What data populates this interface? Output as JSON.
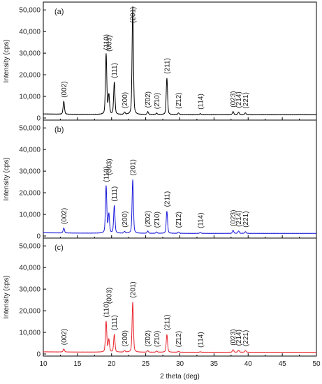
{
  "chart_data": [
    {
      "type": "line",
      "panel_label": "(a)",
      "color": "#000000",
      "xlabel": "2 theta (deg)",
      "ylabel": "Intensity (cps)",
      "xlim": [
        10,
        50
      ],
      "ylim": [
        0,
        52000
      ],
      "xticks": [
        10,
        15,
        20,
        25,
        30,
        35,
        40,
        45,
        50
      ],
      "yticks": [
        0,
        10000,
        20000,
        30000,
        40000,
        50000
      ],
      "ytick_labels": [
        "0",
        "10,000",
        "20,000",
        "30,000",
        "40,000",
        "50,000"
      ],
      "baseline": 1500,
      "peaks": [
        {
          "x": 13.0,
          "y": 7500,
          "label": "(002)"
        },
        {
          "x": 19.2,
          "y": 29500,
          "label": "(110)"
        },
        {
          "x": 19.6,
          "y": 10500,
          "label": "(003)"
        },
        {
          "x": 20.4,
          "y": 16500,
          "label": "(111)"
        },
        {
          "x": 21.9,
          "y": 2500,
          "label": "(200)"
        },
        {
          "x": 23.1,
          "y": 51500,
          "label": "(201)"
        },
        {
          "x": 25.3,
          "y": 2800,
          "label": "(2̄02)"
        },
        {
          "x": 26.6,
          "y": 2200,
          "label": "(2̄10)"
        },
        {
          "x": 28.1,
          "y": 18500,
          "label": "(211)"
        },
        {
          "x": 29.8,
          "y": 2300,
          "label": "(2̄12)"
        },
        {
          "x": 33.0,
          "y": 2000,
          "label": "(114)"
        },
        {
          "x": 37.8,
          "y": 3000,
          "label": "(023)"
        },
        {
          "x": 38.6,
          "y": 2700,
          "label": "(214)"
        },
        {
          "x": 39.6,
          "y": 2400,
          "label": "(221)"
        }
      ]
    },
    {
      "type": "line",
      "panel_label": "(b)",
      "color": "#1a1adc",
      "xlabel": "2 theta (deg)",
      "ylabel": "Intensity (cps)",
      "xlim": [
        10,
        50
      ],
      "ylim": [
        0,
        52000
      ],
      "xticks": [
        10,
        15,
        20,
        25,
        30,
        35,
        40,
        45,
        50
      ],
      "yticks": [
        0,
        10000,
        20000,
        30000,
        40000,
        50000
      ],
      "ytick_labels": [
        "0",
        "10,000",
        "20,000",
        "30,000",
        "40,000",
        "50,000"
      ],
      "baseline": 1200,
      "peaks": [
        {
          "x": 13.0,
          "y": 3500,
          "label": "(002)"
        },
        {
          "x": 19.2,
          "y": 23000,
          "label": "(110)"
        },
        {
          "x": 19.6,
          "y": 10000,
          "label": "(003)"
        },
        {
          "x": 20.4,
          "y": 14000,
          "label": "(111)"
        },
        {
          "x": 21.9,
          "y": 2000,
          "label": "(200)"
        },
        {
          "x": 23.1,
          "y": 26000,
          "label": "(201)"
        },
        {
          "x": 25.3,
          "y": 2200,
          "label": "(2̄02)"
        },
        {
          "x": 26.6,
          "y": 1800,
          "label": "(2̄10)"
        },
        {
          "x": 28.1,
          "y": 11500,
          "label": "(211)"
        },
        {
          "x": 29.8,
          "y": 1800,
          "label": "(2̄12)"
        },
        {
          "x": 33.0,
          "y": 1600,
          "label": "(114)"
        },
        {
          "x": 37.8,
          "y": 2600,
          "label": "(023)"
        },
        {
          "x": 38.6,
          "y": 2300,
          "label": "(214)"
        },
        {
          "x": 39.6,
          "y": 2000,
          "label": "(221)"
        }
      ]
    },
    {
      "type": "line",
      "panel_label": "(c)",
      "color": "#e8232a",
      "xlabel": "2 theta (deg)",
      "ylabel": "Intensity (cps)",
      "xlim": [
        10,
        50
      ],
      "ylim": [
        0,
        52000
      ],
      "xticks": [
        10,
        15,
        20,
        25,
        30,
        35,
        40,
        45,
        50
      ],
      "yticks": [
        0,
        10000,
        20000,
        30000,
        40000,
        50000
      ],
      "ytick_labels": [
        "0",
        "10,000",
        "20,000",
        "30,000",
        "40,000",
        "50,000"
      ],
      "baseline": 800,
      "peaks": [
        {
          "x": 13.0,
          "y": 2200,
          "label": "(002)"
        },
        {
          "x": 19.2,
          "y": 15000,
          "label": "(110)"
        },
        {
          "x": 19.6,
          "y": 6500,
          "label": "(003)"
        },
        {
          "x": 20.4,
          "y": 9000,
          "label": "(111)"
        },
        {
          "x": 21.9,
          "y": 1500,
          "label": "(200)"
        },
        {
          "x": 23.1,
          "y": 24000,
          "label": "(201)"
        },
        {
          "x": 25.3,
          "y": 1500,
          "label": "(2̄02)"
        },
        {
          "x": 26.6,
          "y": 1300,
          "label": "(2̄10)"
        },
        {
          "x": 28.1,
          "y": 9000,
          "label": "(211)"
        },
        {
          "x": 29.8,
          "y": 1200,
          "label": "(2̄12)"
        },
        {
          "x": 33.0,
          "y": 1000,
          "label": "(114)"
        },
        {
          "x": 37.8,
          "y": 2000,
          "label": "(023)"
        },
        {
          "x": 38.6,
          "y": 1800,
          "label": "(214)"
        },
        {
          "x": 39.6,
          "y": 1600,
          "label": "(221)"
        }
      ]
    }
  ]
}
